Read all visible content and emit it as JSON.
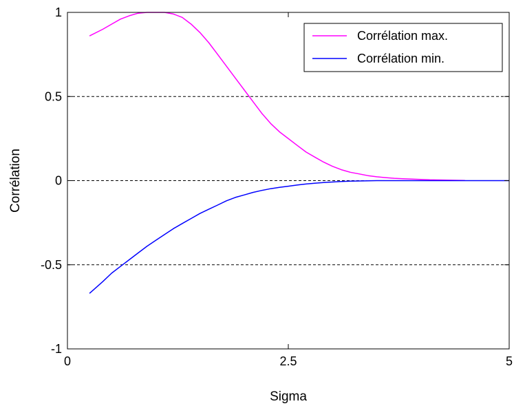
{
  "chart_data": {
    "type": "line",
    "title": "",
    "xlabel": "Sigma",
    "ylabel": "Corrélation",
    "xlim": [
      0,
      5
    ],
    "ylim": [
      -1,
      1
    ],
    "xticks": [
      0,
      2.5,
      5
    ],
    "xtick_labels": [
      "0",
      "2.5",
      "5"
    ],
    "yticks": [
      -1,
      -0.5,
      0,
      0.5,
      1
    ],
    "ytick_labels": [
      "-1",
      "-0.5",
      "0",
      "0.5",
      "1"
    ],
    "grid": "dashed horizontal lines at y = -0.5, 0, 0.5",
    "legend_position": "top-right",
    "series": [
      {
        "name": "Corrélation max.",
        "color": "#ff00ff",
        "x": [
          0.25,
          0.4,
          0.5,
          0.6,
          0.7,
          0.8,
          0.9,
          1.0,
          1.1,
          1.2,
          1.3,
          1.4,
          1.5,
          1.6,
          1.7,
          1.8,
          1.9,
          2.0,
          2.1,
          2.2,
          2.3,
          2.4,
          2.5,
          2.6,
          2.7,
          2.8,
          2.9,
          3.0,
          3.1,
          3.2,
          3.3,
          3.4,
          3.5,
          3.6,
          3.7,
          3.8,
          3.9,
          4.0,
          4.1,
          4.2,
          4.3,
          4.4,
          4.5
        ],
        "y": [
          0.86,
          0.9,
          0.93,
          0.96,
          0.98,
          0.995,
          1.0,
          1.0,
          1.0,
          0.99,
          0.97,
          0.93,
          0.88,
          0.82,
          0.75,
          0.68,
          0.61,
          0.54,
          0.47,
          0.4,
          0.34,
          0.29,
          0.25,
          0.21,
          0.17,
          0.14,
          0.11,
          0.085,
          0.065,
          0.05,
          0.04,
          0.03,
          0.023,
          0.018,
          0.014,
          0.011,
          0.009,
          0.007,
          0.005,
          0.004,
          0.003,
          0.002,
          0.001
        ]
      },
      {
        "name": "Corrélation min.",
        "color": "#0000ff",
        "x": [
          0.25,
          0.4,
          0.5,
          0.6,
          0.7,
          0.8,
          0.9,
          1.0,
          1.1,
          1.2,
          1.3,
          1.4,
          1.5,
          1.6,
          1.7,
          1.8,
          1.9,
          2.0,
          2.1,
          2.2,
          2.3,
          2.4,
          2.5,
          2.6,
          2.7,
          2.8,
          2.9,
          3.0,
          3.1,
          3.2,
          3.3,
          3.4,
          3.5,
          3.6,
          3.7,
          3.8,
          3.9,
          4.0,
          4.5,
          5.0
        ],
        "y": [
          -0.67,
          -0.6,
          -0.55,
          -0.51,
          -0.47,
          -0.43,
          -0.39,
          -0.355,
          -0.32,
          -0.285,
          -0.255,
          -0.225,
          -0.195,
          -0.17,
          -0.145,
          -0.12,
          -0.1,
          -0.085,
          -0.07,
          -0.058,
          -0.048,
          -0.04,
          -0.033,
          -0.026,
          -0.02,
          -0.015,
          -0.011,
          -0.008,
          -0.005,
          -0.003,
          -0.002,
          -0.001,
          0,
          0,
          0,
          0,
          0,
          0,
          0,
          0
        ]
      }
    ]
  }
}
